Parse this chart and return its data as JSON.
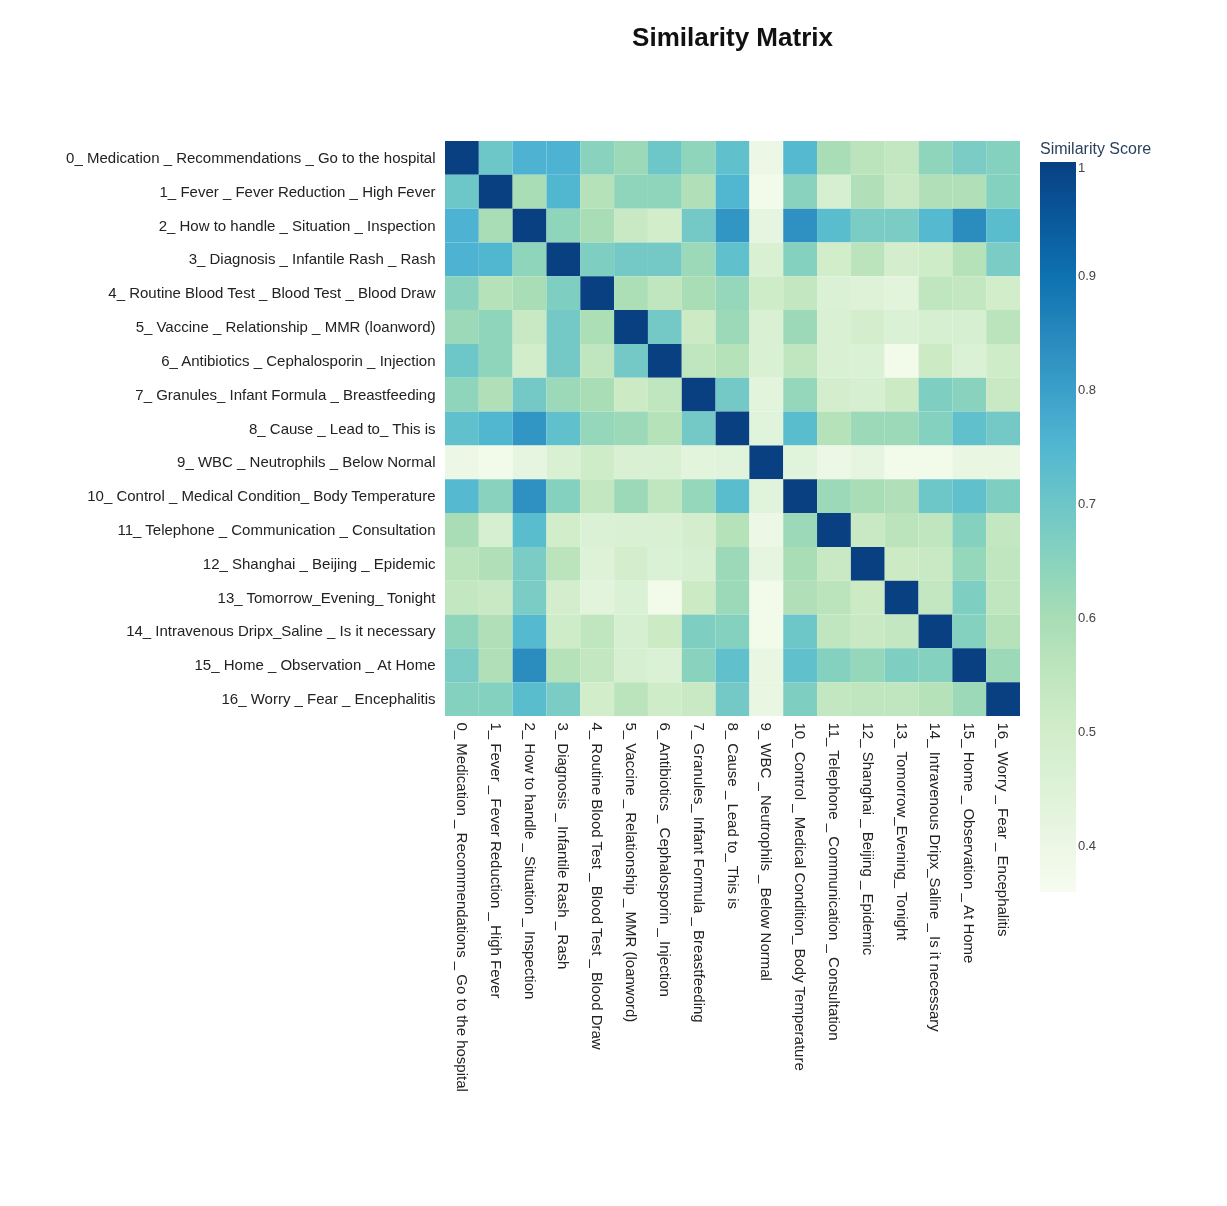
{
  "chart_data": {
    "type": "heatmap",
    "title": "Similarity Matrix",
    "legend_title": "Similarity Score",
    "categories": [
      "0_ Medication _ Recommendations _ Go to the hospital",
      "1_ Fever _ Fever Reduction _ High Fever",
      "2_ How to handle _ Situation _ Inspection",
      "3_ Diagnosis _ Infantile Rash _ Rash",
      "4_ Routine Blood Test _ Blood Test _ Blood Draw",
      "5_ Vaccine _ Relationship _ MMR (loanword)",
      "6_ Antibiotics _ Cephalosporin _ Injection",
      "7_ Granules_ Infant Formula _ Breastfeeding",
      "8_ Cause _ Lead to_ This is",
      "9_ WBC _ Neutrophils _ Below Normal",
      "10_ Control _ Medical Condition_ Body Temperature",
      "11_ Telephone _ Communication _ Consultation",
      "12_ Shanghai _ Beijing _ Epidemic",
      "13_ Tomorrow_Evening_ Tonight",
      "14_ Intravenous Dripx_Saline _ Is it necessary",
      "15_ Home _ Observation _ At Home",
      "16_ Worry _ Fear _ Encephalitis"
    ],
    "y_categories": [
      "0_ Medication _ Recommendations _ Go to the hospital",
      "1_ Fever _ Fever Reduction _ High Fever",
      "2_ How to handle _ Situation _ Inspection",
      "3_ Diagnosis _ Infantile Rash _ Rash",
      "4_ Routine Blood Test _ Blood Test _ Blood Draw",
      "5_ Vaccine _ Relationship _ MMR (loanword)",
      "6_ Antibiotics _ Cephalosporin _ Injection",
      "7_ Granules_ Infant Formula _ Breastfeeding",
      "8_ Cause _ Lead to_ This is",
      "9_ WBC _ Neutrophils _ Below Normal",
      "10_ Control _ Medical Condition_ Body Temperature",
      "11_ Telephone _ Communication _ Consultation",
      "12_ Shanghai _ Beijing _ Epidemic",
      "13_ Tomorrow_Evening_ Tonight",
      "14_ Intravenous Dripx_Saline _ Is it necessary",
      "15_ Home _ Observation _ At Home",
      "16_ Worry _ Fear _ Encephalitis"
    ],
    "cells": [
      [
        1,
        0.7,
        0.76,
        0.76,
        0.65,
        0.62,
        0.7,
        0.64,
        0.72,
        0.4,
        0.74,
        0.6,
        0.56,
        0.54,
        0.64,
        0.68,
        0.66
      ],
      [
        0.7,
        1,
        0.6,
        0.75,
        0.57,
        0.64,
        0.64,
        0.58,
        0.75,
        0.38,
        0.65,
        0.48,
        0.58,
        0.53,
        0.58,
        0.58,
        0.66
      ],
      [
        0.76,
        0.6,
        1,
        0.64,
        0.6,
        0.53,
        0.5,
        0.69,
        0.82,
        0.42,
        0.83,
        0.73,
        0.68,
        0.68,
        0.74,
        0.84,
        0.73
      ],
      [
        0.76,
        0.75,
        0.64,
        1,
        0.67,
        0.69,
        0.69,
        0.62,
        0.72,
        0.47,
        0.66,
        0.5,
        0.56,
        0.49,
        0.51,
        0.57,
        0.68
      ],
      [
        0.65,
        0.57,
        0.6,
        0.67,
        1,
        0.59,
        0.55,
        0.6,
        0.63,
        0.51,
        0.54,
        0.46,
        0.45,
        0.43,
        0.55,
        0.54,
        0.5
      ],
      [
        0.62,
        0.64,
        0.53,
        0.69,
        0.59,
        1,
        0.69,
        0.52,
        0.62,
        0.47,
        0.62,
        0.47,
        0.49,
        0.46,
        0.48,
        0.48,
        0.56
      ],
      [
        0.7,
        0.64,
        0.5,
        0.69,
        0.55,
        0.69,
        1,
        0.55,
        0.57,
        0.47,
        0.55,
        0.47,
        0.46,
        0.38,
        0.52,
        0.46,
        0.51
      ],
      [
        0.64,
        0.58,
        0.69,
        0.62,
        0.6,
        0.52,
        0.55,
        1,
        0.69,
        0.43,
        0.63,
        0.49,
        0.48,
        0.52,
        0.67,
        0.65,
        0.53
      ],
      [
        0.72,
        0.75,
        0.82,
        0.72,
        0.63,
        0.62,
        0.57,
        0.69,
        1,
        0.44,
        0.73,
        0.57,
        0.62,
        0.62,
        0.66,
        0.72,
        0.69
      ],
      [
        0.4,
        0.38,
        0.42,
        0.47,
        0.51,
        0.47,
        0.47,
        0.43,
        0.44,
        1,
        0.44,
        0.4,
        0.42,
        0.38,
        0.38,
        0.41,
        0.41
      ],
      [
        0.74,
        0.65,
        0.83,
        0.66,
        0.54,
        0.62,
        0.55,
        0.63,
        0.73,
        0.44,
        1,
        0.62,
        0.6,
        0.58,
        0.7,
        0.72,
        0.67
      ],
      [
        0.6,
        0.48,
        0.73,
        0.5,
        0.46,
        0.47,
        0.47,
        0.49,
        0.57,
        0.4,
        0.62,
        1,
        0.53,
        0.56,
        0.55,
        0.66,
        0.54
      ],
      [
        0.56,
        0.58,
        0.68,
        0.56,
        0.45,
        0.49,
        0.46,
        0.48,
        0.62,
        0.42,
        0.6,
        0.53,
        1,
        0.52,
        0.53,
        0.63,
        0.55
      ],
      [
        0.54,
        0.53,
        0.68,
        0.49,
        0.43,
        0.46,
        0.38,
        0.52,
        0.62,
        0.38,
        0.58,
        0.56,
        0.52,
        1,
        0.54,
        0.67,
        0.55
      ],
      [
        0.64,
        0.58,
        0.74,
        0.51,
        0.55,
        0.48,
        0.52,
        0.67,
        0.66,
        0.38,
        0.7,
        0.55,
        0.53,
        0.54,
        1,
        0.66,
        0.57
      ],
      [
        0.68,
        0.58,
        0.84,
        0.57,
        0.54,
        0.48,
        0.46,
        0.65,
        0.72,
        0.41,
        0.72,
        0.66,
        0.63,
        0.67,
        0.66,
        1,
        0.62
      ],
      [
        0.66,
        0.66,
        0.73,
        0.68,
        0.5,
        0.56,
        0.51,
        0.53,
        0.69,
        0.41,
        0.67,
        0.54,
        0.55,
        0.55,
        0.57,
        0.62,
        1
      ]
    ],
    "clim": [
      0.36,
      1
    ],
    "cticks": [
      0.4,
      0.5,
      0.6,
      0.7,
      0.8,
      0.9,
      1
    ],
    "grid": false
  }
}
